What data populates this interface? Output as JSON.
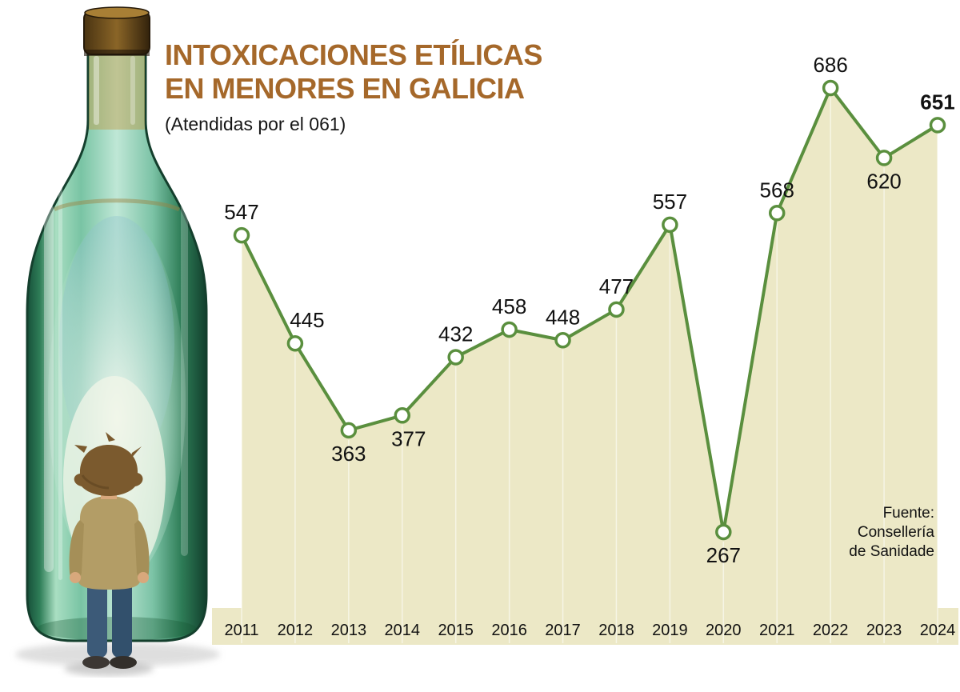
{
  "title": {
    "line1": "INTOXICACIONES ETÍLICAS",
    "line2": "EN MENORES EN GALICIA",
    "subtitle": "(Atendidas por el 061)"
  },
  "source": {
    "line1": "Fuente:",
    "line2": "Consellería",
    "line3": "de Sanidade"
  },
  "colors": {
    "title_brown": "#a5682a",
    "line_green": "#5a8f3e",
    "area_beige": "#ece8c6",
    "marker_fill": "#ffffff",
    "text_black": "#111111"
  },
  "chart_data": {
    "type": "line",
    "title": "Intoxicaciones etílicas en menores en Galicia",
    "subtitle": "(Atendidas por el 061)",
    "source": "Fuente: Consellería de Sanidade",
    "x": [
      "2011",
      "2012",
      "2013",
      "2014",
      "2015",
      "2016",
      "2017",
      "2018",
      "2019",
      "2020",
      "2021",
      "2022",
      "2023",
      "2024"
    ],
    "values": [
      547,
      445,
      363,
      377,
      432,
      458,
      448,
      477,
      557,
      267,
      568,
      686,
      620,
      651
    ],
    "ylim": [
      160,
      720
    ],
    "grid": false,
    "area_fill": true,
    "markers": "open-circle",
    "value_labels": true,
    "labels_below_indices": [
      2,
      3,
      9,
      12
    ],
    "label_dx": {
      "1": 15,
      "3": 8
    },
    "bold_label_index": 13,
    "legend": "none"
  }
}
